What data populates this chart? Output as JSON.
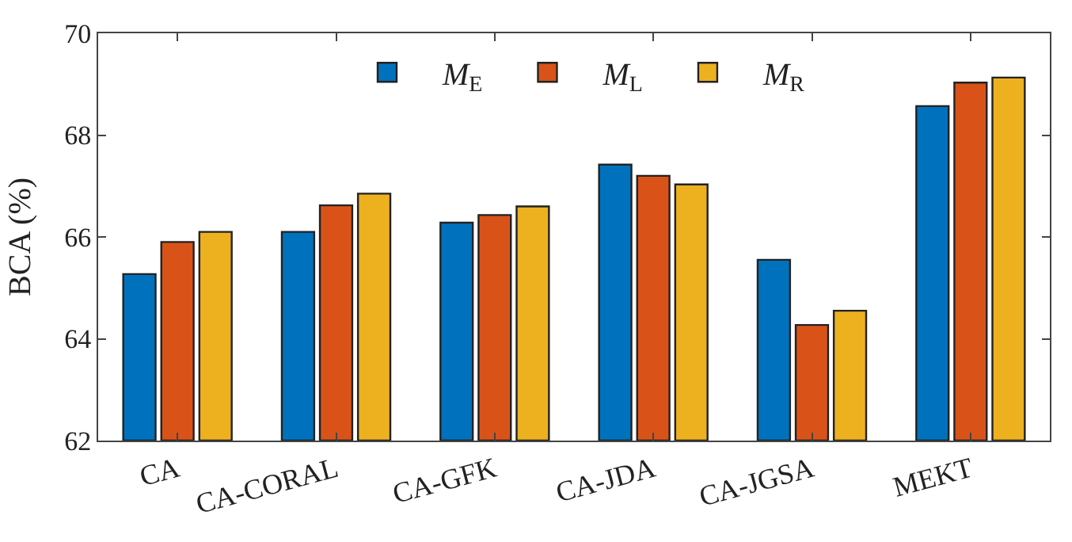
{
  "chart_data": {
    "type": "bar",
    "ylabel": "BCA (%)",
    "categories": [
      "CA",
      "CA-CORAL",
      "CA-GFK",
      "CA-JDA",
      "CA-JGSA",
      "MEKT"
    ],
    "series": [
      {
        "name": "M$_{E}$",
        "color": "#0072bd",
        "values": [
          65.27,
          66.1,
          66.28,
          67.42,
          65.55,
          68.57
        ]
      },
      {
        "name": "M$_{L}$",
        "color": "#d95319",
        "values": [
          65.9,
          66.62,
          66.43,
          67.2,
          64.27,
          69.03
        ]
      },
      {
        "name": "M$_{R}$",
        "color": "#edb120",
        "values": [
          66.1,
          66.85,
          66.6,
          67.03,
          64.55,
          69.13
        ]
      }
    ],
    "ylim": [
      62,
      70
    ],
    "yticks": [
      62,
      64,
      66,
      68,
      70
    ],
    "legend": "top"
  }
}
